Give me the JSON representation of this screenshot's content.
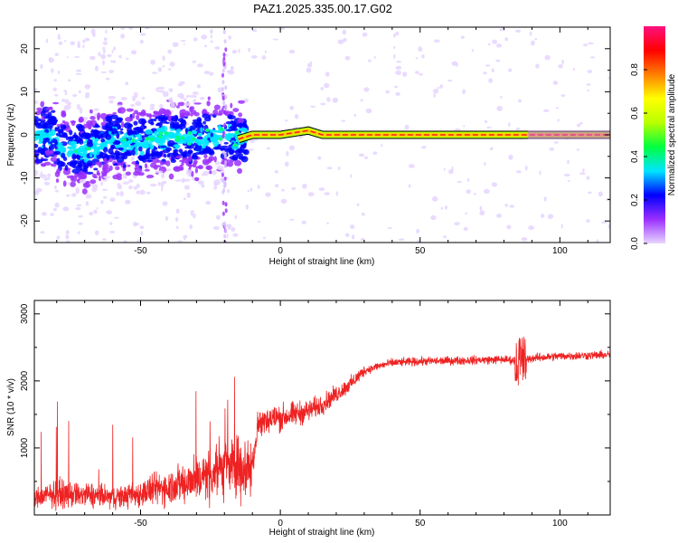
{
  "title": "PAZ1.2025.335.00.17.G02",
  "chart_data": [
    {
      "type": "heatmap",
      "xlabel": "Height of straight line (km)",
      "ylabel": "Frequency (Hz)",
      "xlim": [
        -88,
        118
      ],
      "ylim": [
        -25,
        25
      ],
      "xticks": [
        -50,
        0,
        50,
        100
      ],
      "yticks": [
        -20,
        -10,
        0,
        10,
        20
      ],
      "x_tick_labels": [
        "-50",
        "0",
        "50",
        "100"
      ],
      "y_tick_labels": [
        "-20",
        "-10",
        "0",
        "10",
        "20"
      ],
      "ridge": [
        {
          "x": -80,
          "y": -3
        },
        {
          "x": -70,
          "y": -4
        },
        {
          "x": -60,
          "y": -1
        },
        {
          "x": -50,
          "y": -2
        },
        {
          "x": -40,
          "y": 0
        },
        {
          "x": -30,
          "y": -1
        },
        {
          "x": -20,
          "y": 0
        },
        {
          "x": -15,
          "y": -1
        },
        {
          "x": -10,
          "y": 0
        },
        {
          "x": 0,
          "y": 0
        },
        {
          "x": 10,
          "y": 1
        },
        {
          "x": 15,
          "y": 0
        },
        {
          "x": 30,
          "y": 0
        },
        {
          "x": 60,
          "y": 0
        },
        {
          "x": 85,
          "y": 0
        },
        {
          "x": 100,
          "y": 0
        },
        {
          "x": 118,
          "y": 0
        }
      ]
    },
    {
      "type": "colorbar",
      "label": "Normalized spectral amplitude",
      "range": [
        0,
        1
      ],
      "ticks": [
        0.0,
        0.2,
        0.4,
        0.6,
        0.8
      ],
      "tick_labels": [
        "0.0",
        "0.2",
        "0.4",
        "0.6",
        "0.8"
      ],
      "colors": [
        "#e8d6ff",
        "#9b30ff",
        "#0000ff",
        "#00e5ff",
        "#00ff40",
        "#b8ff00",
        "#ffff00",
        "#ff7f00",
        "#ff0000",
        "#ff1080"
      ]
    },
    {
      "type": "line",
      "xlabel": "Height of straight line (km)",
      "ylabel": "SNR (10 * v/v)",
      "xlim": [
        -88,
        118
      ],
      "ylim": [
        0,
        3200
      ],
      "xticks": [
        -50,
        0,
        50,
        100
      ],
      "yticks": [
        1000,
        2000,
        3000
      ],
      "x_tick_labels": [
        "-50",
        "0",
        "50",
        "100"
      ],
      "y_tick_labels": [
        "1000",
        "2000",
        "3000"
      ],
      "color": "#ee2222",
      "series": [
        {
          "name": "SNR",
          "x": [
            -88,
            -80,
            -75,
            -70,
            -65,
            -60,
            -55,
            -50,
            -45,
            -40,
            -35,
            -30,
            -25,
            -20,
            -15,
            -10,
            -8,
            -5,
            0,
            5,
            10,
            15,
            20,
            25,
            30,
            35,
            40,
            50,
            60,
            70,
            80,
            85,
            90,
            100,
            110,
            118
          ],
          "y": [
            250,
            320,
            300,
            300,
            280,
            260,
            280,
            320,
            380,
            420,
            480,
            560,
            650,
            700,
            750,
            700,
            1350,
            1420,
            1450,
            1500,
            1550,
            1650,
            1800,
            1950,
            2150,
            2220,
            2270,
            2290,
            2300,
            2310,
            2320,
            2300,
            2340,
            2370,
            2380,
            2390
          ]
        }
      ]
    }
  ]
}
